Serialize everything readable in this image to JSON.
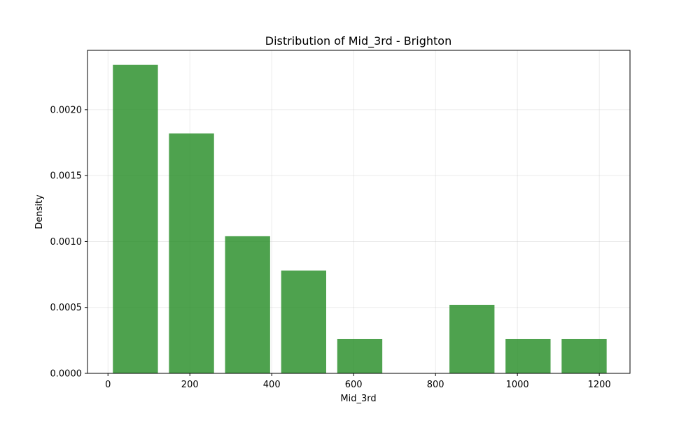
{
  "chart_data": {
    "type": "bar",
    "title": "Distribution of Mid_3rd - Brighton",
    "xlabel": "Mid_3rd",
    "ylabel": "Density",
    "bar_color": "#228b22",
    "xlim": [
      -50,
      1275
    ],
    "ylim": [
      0,
      0.00245
    ],
    "grid": true,
    "x_ticks": [
      0,
      200,
      400,
      600,
      800,
      1000,
      1200
    ],
    "y_ticks": [
      0,
      0.0005,
      0.001,
      0.0015,
      0.002
    ],
    "y_tick_labels": [
      "0.0000",
      "0.0005",
      "0.0010",
      "0.0015",
      "0.0020"
    ],
    "bins": [
      {
        "start": 12,
        "end": 122,
        "density": 0.00234
      },
      {
        "start": 149,
        "end": 259,
        "density": 0.00182
      },
      {
        "start": 286,
        "end": 396,
        "density": 0.00104
      },
      {
        "start": 423,
        "end": 533,
        "density": 0.00078
      },
      {
        "start": 560,
        "end": 670,
        "density": 0.00026
      },
      {
        "start": 697,
        "end": 807,
        "density": 0
      },
      {
        "start": 834,
        "end": 944,
        "density": 0.00052
      },
      {
        "start": 971,
        "end": 1081,
        "density": 0.00026
      },
      {
        "start": 1108,
        "end": 1218,
        "density": 0.00026
      }
    ]
  }
}
